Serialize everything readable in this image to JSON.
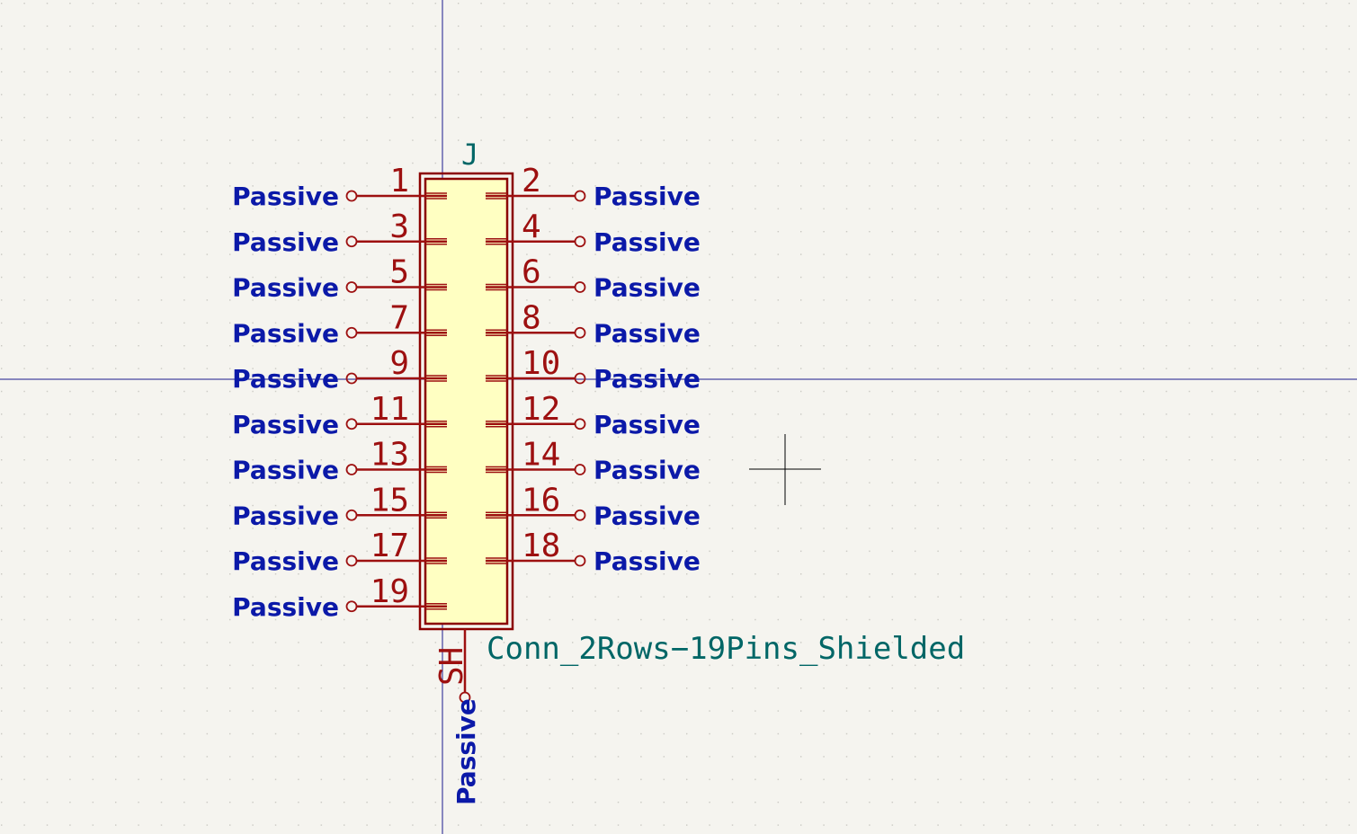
{
  "symbol": {
    "reference": "J",
    "value": "Conn_2Rows−19Pins_Shielded"
  },
  "pins_left": [
    {
      "number": "1",
      "type": "Passive"
    },
    {
      "number": "3",
      "type": "Passive"
    },
    {
      "number": "5",
      "type": "Passive"
    },
    {
      "number": "7",
      "type": "Passive"
    },
    {
      "number": "9",
      "type": "Passive"
    },
    {
      "number": "11",
      "type": "Passive"
    },
    {
      "number": "13",
      "type": "Passive"
    },
    {
      "number": "15",
      "type": "Passive"
    },
    {
      "number": "17",
      "type": "Passive"
    },
    {
      "number": "19",
      "type": "Passive"
    }
  ],
  "pins_right": [
    {
      "number": "2",
      "type": "Passive"
    },
    {
      "number": "4",
      "type": "Passive"
    },
    {
      "number": "6",
      "type": "Passive"
    },
    {
      "number": "8",
      "type": "Passive"
    },
    {
      "number": "10",
      "type": "Passive"
    },
    {
      "number": "12",
      "type": "Passive"
    },
    {
      "number": "14",
      "type": "Passive"
    },
    {
      "number": "16",
      "type": "Passive"
    },
    {
      "number": "18",
      "type": "Passive"
    }
  ],
  "shield_pin": {
    "number": "SH",
    "type": "Passive"
  },
  "colors": {
    "background": "#f5f4ef",
    "grid_dot": "#c9c8c2",
    "axis": "#1a1a8c",
    "body_outline": "#8b0000",
    "body_fill": "#ffffc2",
    "pin_line": "#9d1010",
    "pin_number": "#9d1010",
    "pin_type": "#0b19a8",
    "field_text": "#006666",
    "cursor": "#000000"
  }
}
